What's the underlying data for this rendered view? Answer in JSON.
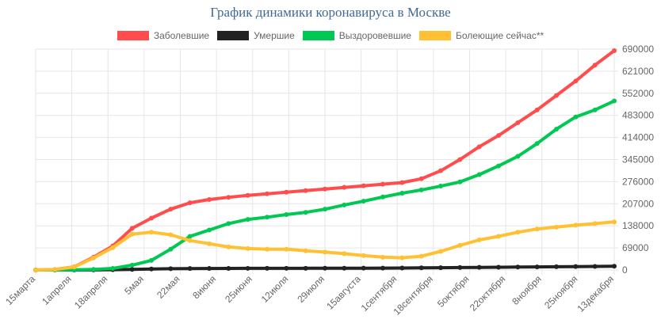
{
  "chart_data": {
    "type": "line",
    "title": "График динамики коронавируса в Москве",
    "x_ticks": [
      "15марта",
      "1апреля",
      "18апреля",
      "5мая",
      "22мая",
      "8июня",
      "25июня",
      "12июля",
      "29июля",
      "15августа",
      "1сентября",
      "18сентября",
      "5октября",
      "22октября",
      "8ноября",
      "25ноября",
      "13декабря"
    ],
    "y_ticks": [
      0,
      69000,
      138000,
      207000,
      276000,
      345000,
      414000,
      483000,
      552000,
      621000,
      690000
    ],
    "ylim": [
      0,
      690000
    ],
    "grid": true,
    "legend_position": "top",
    "series": [
      {
        "name": "Заболевшие",
        "color": "#ff4d4d",
        "values": [
          0,
          1500,
          10000,
          40000,
          75000,
          130000,
          162000,
          190000,
          210000,
          220000,
          227000,
          233000,
          238000,
          243000,
          248000,
          253000,
          258000,
          263000,
          268000,
          273000,
          285000,
          310000,
          345000,
          385000,
          420000,
          460000,
          500000,
          545000,
          590000,
          640000,
          685000
        ]
      },
      {
        "name": "Умершие",
        "color": "#222222",
        "values": [
          0,
          0,
          50,
          300,
          1000,
          2000,
          3200,
          4000,
          4500,
          4800,
          5000,
          5100,
          5200,
          5300,
          5400,
          5500,
          5600,
          5800,
          6000,
          6300,
          6800,
          7200,
          7700,
          8200,
          8700,
          9200,
          9700,
          10200,
          10700,
          11200,
          11900
        ]
      },
      {
        "name": "Выздоровевшие",
        "color": "#00c853",
        "values": [
          0,
          50,
          500,
          2000,
          5000,
          15000,
          30000,
          65000,
          105000,
          125000,
          145000,
          158000,
          165000,
          173000,
          180000,
          190000,
          203000,
          215000,
          228000,
          240000,
          250000,
          262000,
          275000,
          298000,
          325000,
          355000,
          395000,
          440000,
          478000,
          500000,
          528000
        ]
      },
      {
        "name": "Болеющие сейчас**",
        "color": "#ffc133",
        "values": [
          0,
          1400,
          9500,
          37500,
          70000,
          112000,
          118000,
          110000,
          92000,
          82000,
          72000,
          67000,
          65000,
          65000,
          60000,
          56000,
          51000,
          45000,
          40000,
          38000,
          43000,
          58000,
          77000,
          94000,
          105000,
          118000,
          128000,
          134000,
          140000,
          145000,
          150000
        ]
      }
    ]
  }
}
